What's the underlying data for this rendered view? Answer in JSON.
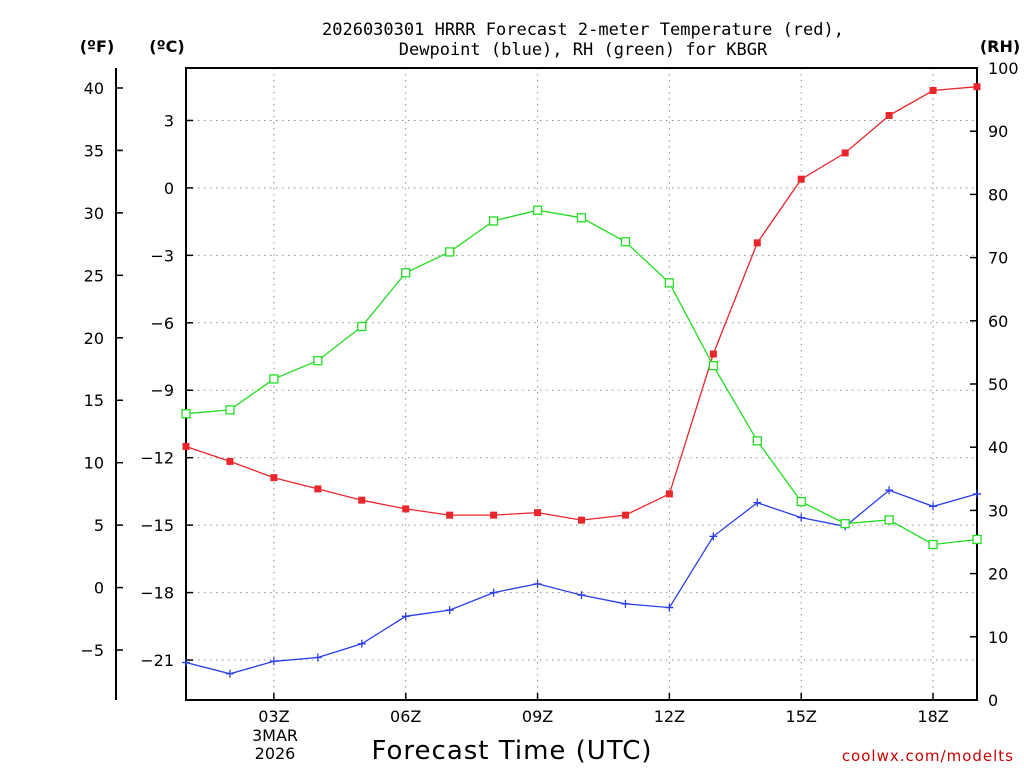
{
  "chart_data": {
    "type": "line",
    "title_line1": "2026030301 HRRR Forecast 2-meter Temperature (red),",
    "title_line2": "Dewpoint (blue), RH (green) for KBGR",
    "xlabel": "Forecast Time (UTC)",
    "date_line1": "3MAR",
    "date_line2": "2026",
    "credit": "coolwx.com/modelts",
    "unit_f": "(ºF)",
    "unit_c": "(ºC)",
    "unit_rh": "(RH)",
    "hours": [
      1,
      2,
      3,
      4,
      5,
      6,
      7,
      8,
      9,
      10,
      11,
      12,
      13,
      14,
      15,
      16,
      17,
      18,
      19
    ],
    "x_range": [
      1,
      19
    ],
    "x_ticks": [
      {
        "hour": 3,
        "label": "03Z"
      },
      {
        "hour": 6,
        "label": "06Z"
      },
      {
        "hour": 9,
        "label": "09Z"
      },
      {
        "hour": 12,
        "label": "12Z"
      },
      {
        "hour": 15,
        "label": "15Z"
      },
      {
        "hour": 18,
        "label": "18Z"
      }
    ],
    "f_range": [
      -9,
      41.6
    ],
    "f_ticks": [
      -5,
      0,
      5,
      10,
      15,
      20,
      25,
      30,
      35,
      40
    ],
    "c_ticks": [
      -21,
      -18,
      -15,
      -12,
      -9,
      -6,
      -3,
      0,
      3
    ],
    "rh_range": [
      0,
      100
    ],
    "rh_ticks": [
      0,
      10,
      20,
      30,
      40,
      50,
      60,
      70,
      80,
      90,
      100
    ],
    "series": [
      {
        "name": "Temperature",
        "units": "F",
        "axis": "left",
        "color": "#e8262b",
        "marker": "filled-square",
        "values": [
          11.3,
          10.1,
          8.8,
          7.9,
          7.0,
          6.3,
          5.8,
          5.8,
          6.0,
          5.4,
          5.8,
          7.5,
          18.7,
          27.6,
          32.7,
          34.8,
          37.8,
          39.8,
          40.1
        ]
      },
      {
        "name": "Dewpoint",
        "units": "F",
        "axis": "left",
        "color": "#2a3ee8",
        "marker": "plus",
        "values": [
          -6.0,
          -6.9,
          -5.9,
          -5.6,
          -4.5,
          -2.3,
          -1.8,
          -0.4,
          0.3,
          -0.6,
          -1.3,
          -1.6,
          4.1,
          6.8,
          5.6,
          4.9,
          7.8,
          6.5,
          7.5
        ]
      },
      {
        "name": "RH",
        "units": "%",
        "axis": "right",
        "color": "#22dd22",
        "marker": "open-square",
        "values": [
          45.3,
          45.9,
          50.8,
          53.7,
          59.1,
          67.6,
          70.9,
          75.8,
          77.5,
          76.3,
          72.5,
          66.0,
          52.9,
          41.0,
          31.4,
          27.9,
          28.5,
          24.6,
          25.4
        ]
      }
    ]
  }
}
